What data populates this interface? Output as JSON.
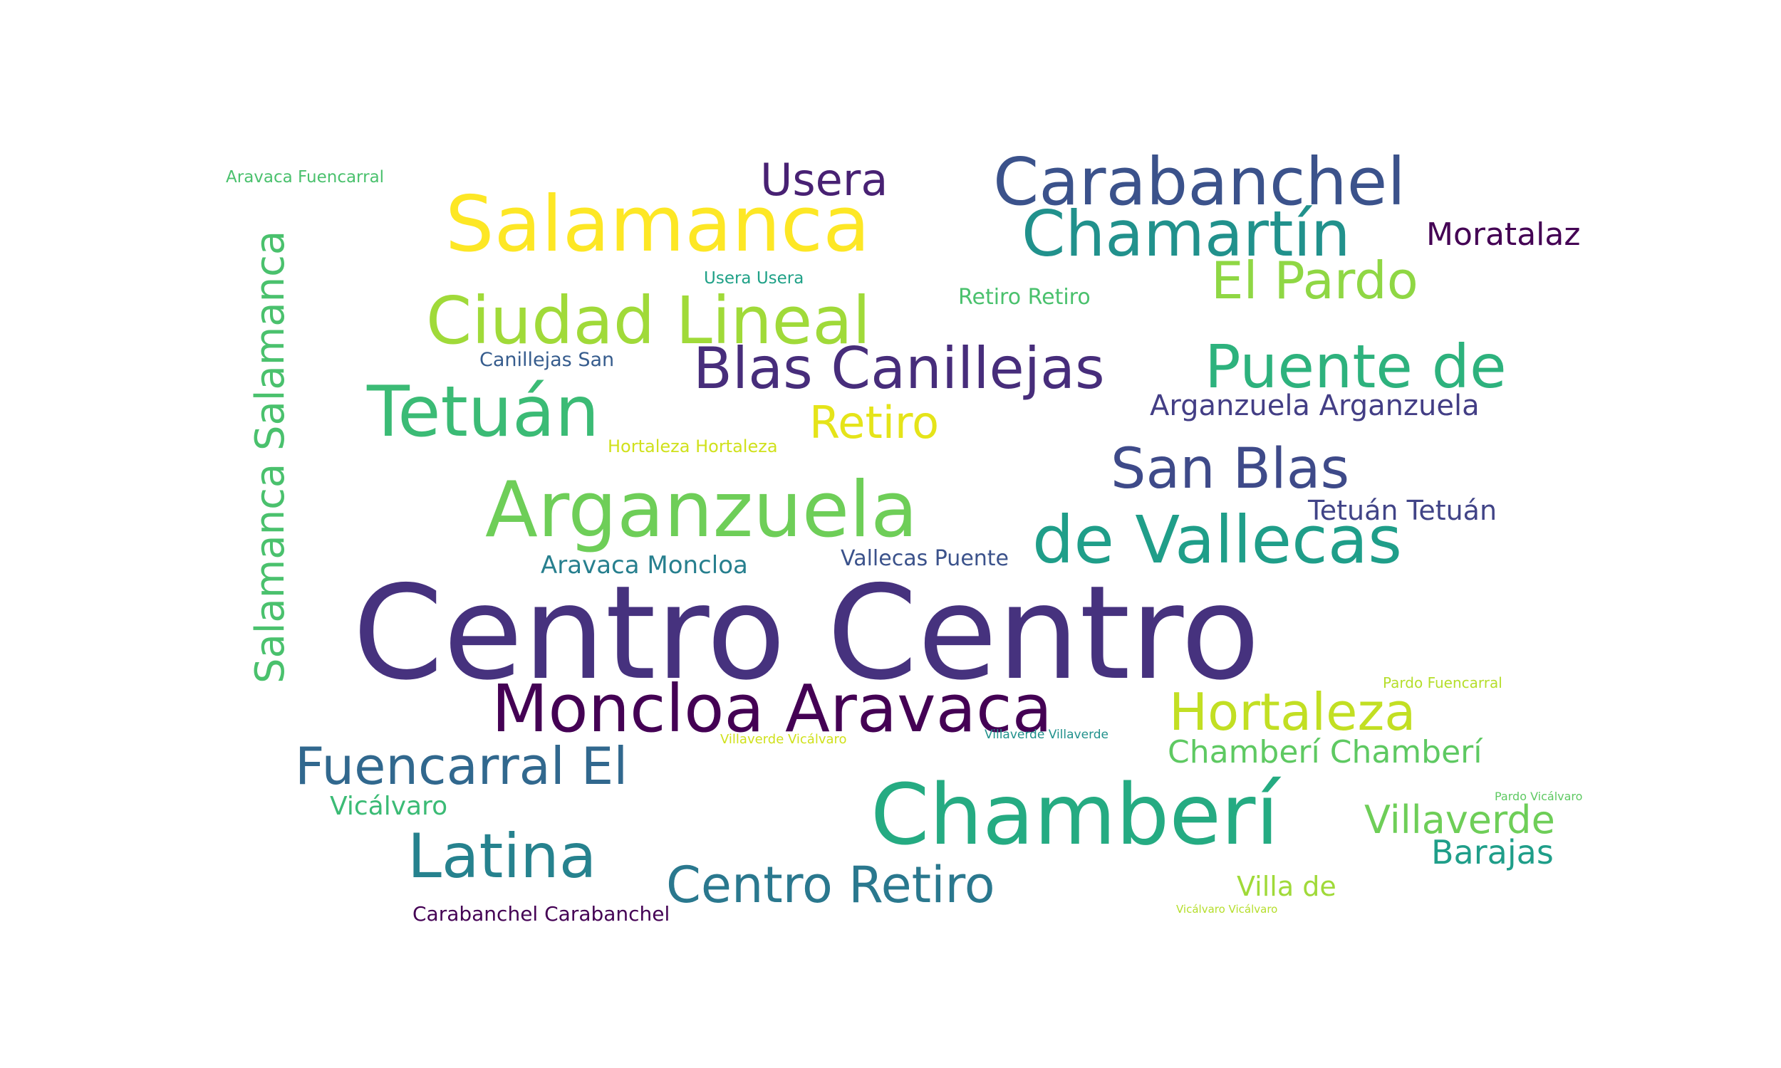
{
  "words": [
    {
      "text": "Centro Centro",
      "color": "#46327e"
    },
    {
      "text": "Salamanca",
      "color": "#fde725"
    },
    {
      "text": "Carabanchel",
      "color": "#3b528b"
    },
    {
      "text": "Chamartín",
      "color": "#21918c"
    },
    {
      "text": "Usera",
      "color": "#482173"
    },
    {
      "text": "Moratalaz",
      "color": "#440154"
    },
    {
      "text": "El Pardo",
      "color": "#8fd744"
    },
    {
      "text": "Retiro Retiro",
      "color": "#4ac16d"
    },
    {
      "text": "Usera Usera",
      "color": "#1fa187"
    },
    {
      "text": "Aravaca Fuencarral",
      "color": "#4ac16d"
    },
    {
      "text": "Ciudad Lineal",
      "color": "#a0da39"
    },
    {
      "text": "Canillejas San",
      "color": "#365c8d"
    },
    {
      "text": "Blas Canillejas",
      "color": "#472d7b"
    },
    {
      "text": "Puente de",
      "color": "#2db27d"
    },
    {
      "text": "Arganzuela Arganzuela",
      "color": "#433e85"
    },
    {
      "text": "Tetuán",
      "color": "#3bbb75"
    },
    {
      "text": "Retiro",
      "color": "#e5e419"
    },
    {
      "text": "Hortaleza Hortaleza",
      "color": "#d0e11c"
    },
    {
      "text": "San Blas",
      "color": "#3e4a89"
    },
    {
      "text": "Tetuán Tetuán",
      "color": "#414487"
    },
    {
      "text": "Arganzuela",
      "color": "#6ece58"
    },
    {
      "text": "de Vallecas",
      "color": "#1f9e89"
    },
    {
      "text": "Aravaca Moncloa",
      "color": "#277f8e"
    },
    {
      "text": "Vallecas Puente",
      "color": "#3b528b"
    },
    {
      "text": "Salamanca Salamanca",
      "color": "#4ac16d"
    },
    {
      "text": "Moncloa Aravaca",
      "color": "#440154"
    },
    {
      "text": "Hortaleza",
      "color": "#c2df23"
    },
    {
      "text": "Pardo Fuencarral",
      "color": "#b5de2b"
    },
    {
      "text": "Villaverde Vicálvaro",
      "color": "#d0e11c"
    },
    {
      "text": "Villaverde Villaverde",
      "color": "#21918c"
    },
    {
      "text": "Chamberí Chamberí",
      "color": "#5ec962"
    },
    {
      "text": "Fuencarral El",
      "color": "#31688e"
    },
    {
      "text": "Chamberí",
      "color": "#25ab82"
    },
    {
      "text": "Vicálvaro",
      "color": "#3bbb75"
    },
    {
      "text": "Pardo Vicálvaro",
      "color": "#5ec962"
    },
    {
      "text": "Villaverde",
      "color": "#6ece58"
    },
    {
      "text": "Barajas",
      "color": "#1f9e89"
    },
    {
      "text": "Latina",
      "color": "#26828e"
    },
    {
      "text": "Centro Retiro",
      "color": "#2a788e"
    },
    {
      "text": "Villa de",
      "color": "#a0da39"
    },
    {
      "text": "Carabanchel Carabanchel",
      "color": "#440154"
    },
    {
      "text": "Vicálvaro Vicálvaro",
      "color": "#b5de2b"
    }
  ]
}
